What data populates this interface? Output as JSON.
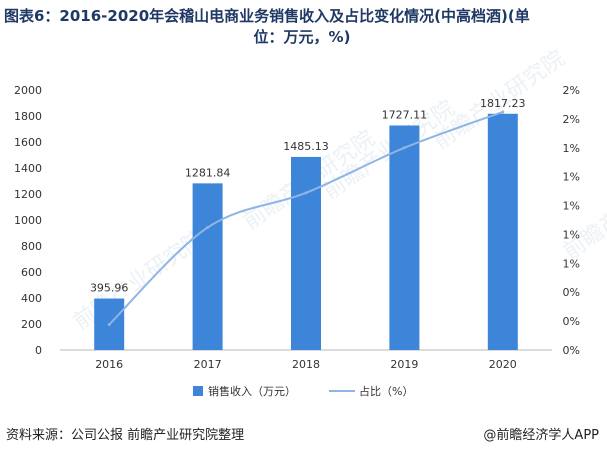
{
  "title_line1": "图表6：2016-2020年会稽山电商业务销售收入及占比变化情况(中高档酒)(单",
  "title_line2": "位：万元，%)",
  "watermark_text": "前瞻产业研究院",
  "footer": {
    "source": "资料来源：公司公报 前瞻产业研究院整理",
    "brand": "@前瞻经济学人APP"
  },
  "colors": {
    "bar": "#3d85d8",
    "line": "#8fb4e6",
    "title": "#1f3864"
  },
  "chart_data": {
    "type": "bar",
    "categories": [
      "2016",
      "2017",
      "2018",
      "2019",
      "2020"
    ],
    "series": [
      {
        "name": "销售收入（万元）",
        "type": "bar",
        "axis": "left",
        "values": [
          395.96,
          1281.84,
          1485.13,
          1727.11,
          1817.23
        ],
        "labels": [
          "395.96",
          "1281.84",
          "1485.13",
          "1727.11",
          "1817.23"
        ]
      },
      {
        "name": "占比（%）",
        "type": "line",
        "axis": "right",
        "values": [
          0.22,
          1.06,
          1.36,
          1.75,
          2.06
        ]
      }
    ],
    "left_axis": {
      "min": 0,
      "max": 2000,
      "ticks": [
        "0",
        "200",
        "400",
        "600",
        "800",
        "1000",
        "1200",
        "1400",
        "1600",
        "1800",
        "2000"
      ]
    },
    "right_axis": {
      "min": 0,
      "max": 2.25,
      "ticks": [
        "0%",
        "0%",
        "0%",
        "1%",
        "1%",
        "1%",
        "1%",
        "1%",
        "2%",
        "2%"
      ]
    },
    "legend_position": "bottom"
  }
}
